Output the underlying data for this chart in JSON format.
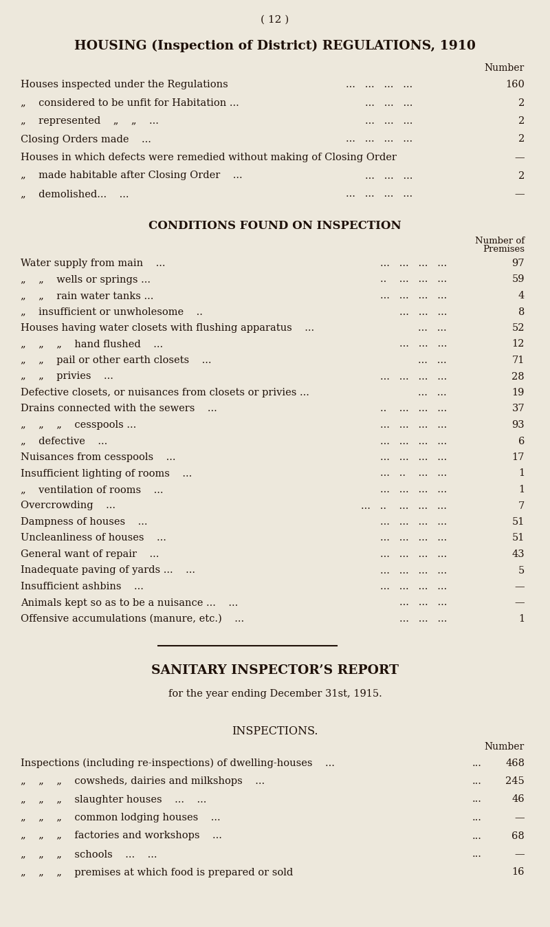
{
  "bg_color": "#ede8dc",
  "text_color": "#1e1008",
  "page_num": "( 12 )",
  "title1": "HOUSING (Inspection of District) REGULATIONS, 1910",
  "section1": [
    [
      "Houses inspected under the Regulations",
      "...",
      "...",
      "...",
      "...",
      "160"
    ],
    [
      "„    considered to be unfit for Habitation ...",
      "...",
      "...",
      "...",
      "...",
      "2"
    ],
    [
      "„    represented    „    „    ...",
      "...",
      "...",
      "...",
      "...",
      "2"
    ],
    [
      "Closing Orders made    ...",
      "...",
      "...",
      "...",
      "...",
      "2"
    ],
    [
      "Houses in which defects were remedied without making of Closing Order",
      "",
      "",
      "",
      "",
      "—"
    ],
    [
      "„    made habitable after Closing Order    ...",
      "...",
      "...",
      "...",
      "...",
      "2"
    ],
    [
      "„    demolished...    ...",
      "...",
      "...",
      "...",
      "...",
      "—"
    ]
  ],
  "title2": "CONDITIONS FOUND ON INSPECTION",
  "section2": [
    [
      "Water supply from main    ...",
      "...",
      "...",
      "...",
      "...",
      "97"
    ],
    [
      "„    „    wells or springs ...",
      "...",
      "...",
      "...",
      "...",
      "59"
    ],
    [
      "„    „    rain water tanks ...",
      "...",
      "...",
      "...",
      "...",
      "4"
    ],
    [
      "„    insufficient or unwholesome    ..",
      "...",
      "...",
      "...",
      "...",
      "8"
    ],
    [
      "Houses having water closets with flushing apparatus    ...",
      "...",
      "...",
      "...",
      "...",
      "52"
    ],
    [
      "„    „    „    hand flushed    ...",
      "...",
      "...",
      "...",
      "...",
      "12"
    ],
    [
      "„    „    pail or other earth closets    ...",
      "...",
      "...",
      "...",
      "...",
      "71"
    ],
    [
      "„    „    privies    ...",
      "...",
      "...",
      "...",
      "...",
      "28"
    ],
    [
      "Defective closets, or nuisances from closets or privies ...",
      "...",
      "...",
      "...",
      "...",
      "19"
    ],
    [
      "Drains connected with the sewers    ...",
      "..",
      "...",
      "...",
      "...",
      "37"
    ],
    [
      "„    „    „    cesspools ...",
      "...",
      "...",
      "...",
      "...",
      "93"
    ],
    [
      "„    defective    ...",
      "...",
      "...",
      "...",
      "...",
      "6"
    ],
    [
      "Nuisances from cesspools    ...",
      "...",
      "...",
      "...",
      "...",
      "17"
    ],
    [
      "Insufficient lighting of rooms    ...",
      "...",
      "..",
      "...",
      "...",
      "1"
    ],
    [
      "„    ventilation of rooms    ...",
      "...",
      "...",
      "...",
      "...",
      "1"
    ],
    [
      "Overcrowding    ...",
      "...",
      "..",
      "...",
      "...",
      "7"
    ],
    [
      "Dampness of houses    ...",
      "...",
      "...",
      "...",
      "...",
      "51"
    ],
    [
      "Uncleanliness of houses    ...",
      "...",
      "...",
      "...",
      "...",
      "51"
    ],
    [
      "General want of repair    ...",
      "...",
      "...",
      "...",
      "...",
      "43"
    ],
    [
      "Inadequate paving of yards ...    ...",
      "...",
      "...",
      "...",
      "...",
      "5"
    ],
    [
      "Insufficient ashbins    ...",
      "...",
      "...",
      "...",
      "...",
      "—"
    ],
    [
      "Animals kept so as to be a nuisance ...    ...",
      "...",
      "...",
      "...",
      "...",
      "—"
    ],
    [
      "Offensive accumulations (manure, etc.)    ...",
      "...",
      "...",
      "...",
      "...",
      "1"
    ]
  ],
  "title3": "SANITARY INSPECTOR’S REPORT",
  "subtitle3": "for the year ending December 31st, 1915.",
  "title4": "INSPECTIONS.",
  "section3": [
    [
      "Inspections (including re-inspections) of dwelling-houses    ...",
      "...",
      "468"
    ],
    [
      "„    „    „    cowsheds, dairies and milkshops    ...",
      "...",
      "245"
    ],
    [
      "„    „    „    slaughter houses    ...    ...",
      "...",
      "46"
    ],
    [
      "„    „    „    common lodging houses    ...",
      "...",
      "—"
    ],
    [
      "„    „    „    factories and workshops    ...",
      "...",
      "68"
    ],
    [
      "„    „    „    schools    ...    ...",
      "...",
      "—"
    ],
    [
      "„    „    „    premises at which food is prepared or sold",
      "",
      "16"
    ]
  ]
}
